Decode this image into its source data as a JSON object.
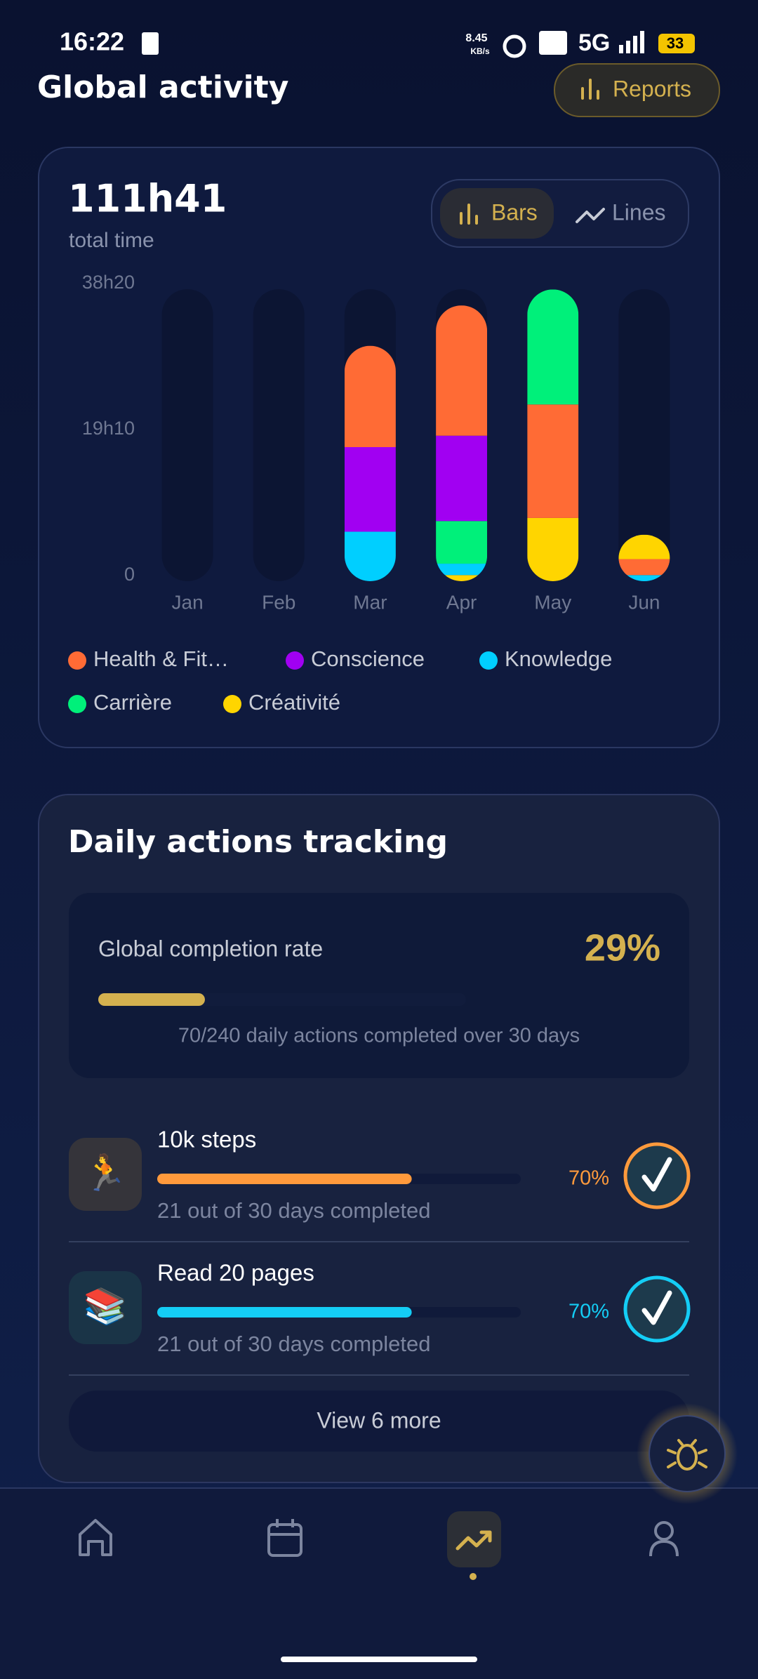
{
  "status_bar": {
    "time": "16:22",
    "speed": "8.45",
    "speed_unit": "KB/s",
    "network": "5G",
    "battery": "33"
  },
  "header": {
    "title": "Global activity",
    "reports_button": "Reports"
  },
  "activity_card": {
    "total": "111h41",
    "total_caption": "total time",
    "view_modes": [
      "Bars",
      "Lines"
    ]
  },
  "chart_data": {
    "type": "bar",
    "stacked": true,
    "categories": [
      "Jan",
      "Feb",
      "Mar",
      "Apr",
      "May",
      "Jun"
    ],
    "series": [
      {
        "name": "Health & Fit…",
        "color": "#ff6b35",
        "values": [
          0,
          0,
          13.3,
          17.1,
          14.9,
          2.1
        ]
      },
      {
        "name": "Conscience",
        "color": "#a100f2",
        "values": [
          0,
          0,
          11.1,
          11.2,
          0,
          0
        ]
      },
      {
        "name": "Knowledge",
        "color": "#00cfff",
        "values": [
          0,
          0,
          6.5,
          1.5,
          0,
          0.8
        ]
      },
      {
        "name": "Carrière",
        "color": "#00f07a",
        "values": [
          0,
          0,
          0,
          5.6,
          15.1,
          0
        ]
      },
      {
        "name": "Créativité",
        "color": "#ffd500",
        "values": [
          0,
          0,
          0,
          0.8,
          8.3,
          3.2
        ]
      }
    ],
    "ylim": [
      0,
      38.333
    ],
    "yticks": [
      0,
      {
        "value": 19.167,
        "label": "19h10"
      },
      {
        "value": 38.333,
        "label": "38h20"
      }
    ],
    "grid": false
  },
  "tracking": {
    "title": "Daily actions tracking",
    "completion": {
      "label": "Global completion rate",
      "rate": 29,
      "rate_label": "29%",
      "summary": "70/240 daily actions completed over 30 days",
      "color": "#d4b14f"
    },
    "habits": [
      {
        "icon": "🏃",
        "name": "10k steps",
        "percent": 70,
        "percent_label": "70%",
        "summary": "21 out of 30 days completed",
        "color": "#ff9a3c"
      },
      {
        "icon": "📚",
        "name": "Read 20 pages",
        "percent": 70,
        "percent_label": "70%",
        "summary": "21 out of 30 days completed",
        "color": "#14cdf5"
      }
    ],
    "more_button": "View 6 more"
  }
}
